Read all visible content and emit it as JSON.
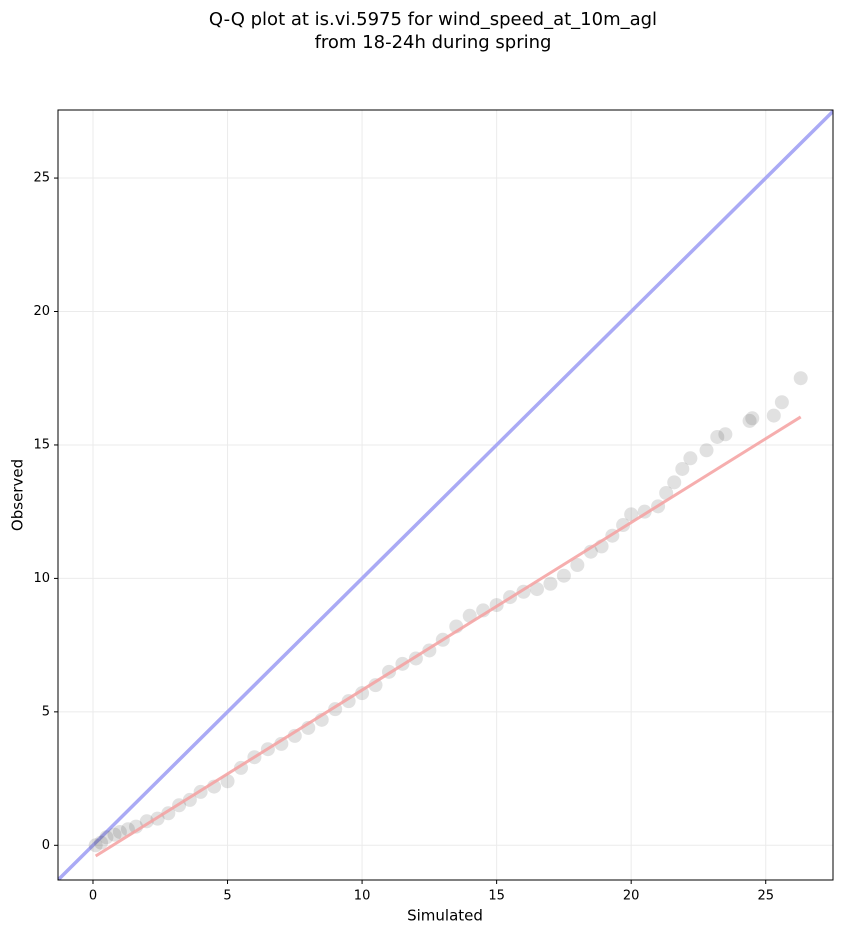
{
  "chart_data": {
    "type": "scatter",
    "title": [
      "Q-Q plot at is.vi.5975 for wind_speed_at_10m_agl",
      "from 18-24h during spring"
    ],
    "xlabel": "Simulated",
    "ylabel": "Observed",
    "xlim": [
      -1.3,
      27.5
    ],
    "ylim": [
      -1.3,
      27.55
    ],
    "xticks": [
      0,
      5,
      10,
      15,
      20,
      25
    ],
    "yticks": [
      0,
      5,
      10,
      15,
      20,
      25
    ],
    "grid": true,
    "point_color": "#333333",
    "x": [
      0.1,
      0.3,
      0.5,
      0.8,
      1.0,
      1.3,
      1.6,
      2.0,
      2.4,
      2.8,
      3.2,
      3.6,
      4.0,
      4.5,
      5.0,
      5.5,
      6.0,
      6.5,
      7.0,
      7.5,
      8.0,
      8.5,
      9.0,
      9.5,
      10.0,
      10.5,
      11.0,
      11.5,
      12.0,
      12.5,
      13.0,
      13.5,
      14.0,
      14.5,
      15.0,
      15.5,
      16.0,
      16.5,
      17.0,
      17.5,
      18.0,
      18.5,
      18.9,
      19.3,
      19.7,
      20.0,
      20.5,
      21.0,
      21.3,
      21.6,
      21.9,
      22.2,
      22.8,
      23.2,
      23.5,
      24.4,
      24.5,
      25.3,
      25.6,
      26.3
    ],
    "values": [
      0.0,
      0.1,
      0.3,
      0.4,
      0.5,
      0.6,
      0.7,
      0.9,
      1.0,
      1.2,
      1.5,
      1.7,
      2.0,
      2.2,
      2.4,
      2.9,
      3.3,
      3.6,
      3.8,
      4.1,
      4.4,
      4.7,
      5.1,
      5.4,
      5.7,
      6.0,
      6.5,
      6.8,
      7.0,
      7.3,
      7.7,
      8.2,
      8.6,
      8.8,
      9.0,
      9.3,
      9.5,
      9.6,
      9.8,
      10.1,
      10.5,
      11.0,
      11.2,
      11.6,
      12.0,
      12.4,
      12.5,
      12.7,
      13.2,
      13.6,
      14.1,
      14.5,
      14.8,
      15.3,
      15.4,
      15.9,
      16.0,
      16.1,
      16.6,
      17.5
    ],
    "identity_line_color": "#aaaaf5",
    "fit_line": {
      "color": "#f4a0a0",
      "x": [
        0.1,
        26.3
      ],
      "y": [
        -0.4,
        16.05
      ]
    }
  }
}
